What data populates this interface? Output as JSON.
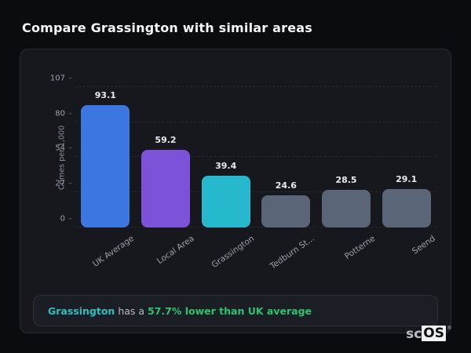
{
  "page": {
    "title": "Compare Grassington with similar areas"
  },
  "chart_data": {
    "type": "bar",
    "categories": [
      "UK Average",
      "Local Area",
      "Grassington",
      "Tedburn St...",
      "Potterne",
      "Seend"
    ],
    "values": [
      93.1,
      59.2,
      39.4,
      24.6,
      28.5,
      29.1
    ],
    "value_labels": [
      "93.1",
      "59.2",
      "39.4",
      "24.6",
      "28.5",
      "29.1"
    ],
    "bar_colors": [
      "#3b76e1",
      "#7c52d9",
      "#26b8cd",
      "#5a6577",
      "#5a6577",
      "#5a6577"
    ],
    "title": "",
    "xlabel": "",
    "ylabel": "Crimes per 1,000",
    "yticks": [
      0,
      27,
      54,
      80,
      107
    ],
    "ylim": [
      0,
      107
    ],
    "grid": "horizontal-dashed",
    "legend": "none"
  },
  "note": {
    "segments": [
      {
        "text": "Grassington",
        "color": "#2cc1bd",
        "bold": true
      },
      {
        "text": " has a ",
        "color": "#b6bcc4",
        "bold": false
      },
      {
        "text": "57.7% lower than UK average",
        "color": "#27c46d",
        "bold": true
      }
    ]
  },
  "logo": {
    "prefix": "sc",
    "suffix": "OS",
    "registered": "®"
  }
}
